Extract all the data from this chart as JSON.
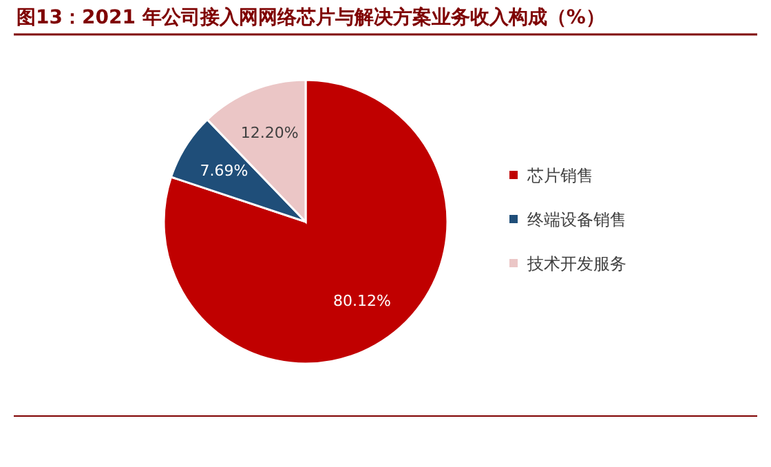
{
  "chart_data": {
    "type": "pie",
    "title": "图13：2021 年公司接入网网络芯片与解决方案业务收入构成（%）",
    "categories": [
      "芯片销售",
      "终端设备销售",
      "技术开发服务"
    ],
    "values": [
      80.12,
      7.69,
      12.2
    ],
    "value_labels": [
      "80.12%",
      "7.69%",
      "12.20%"
    ],
    "colors": [
      "#c00000",
      "#1f4e79",
      "#ebc6c6"
    ],
    "legend": "right"
  }
}
